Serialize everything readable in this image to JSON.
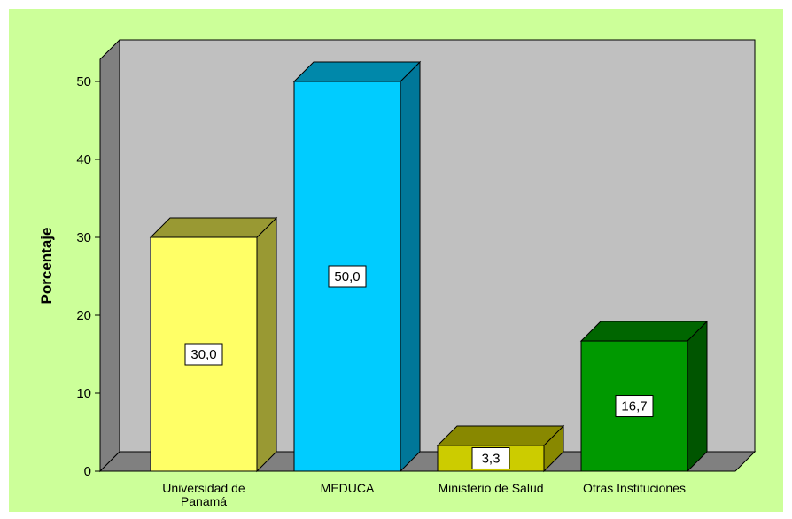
{
  "chart_data": {
    "type": "bar",
    "categories": [
      "Universidad de Panamá",
      "MEDUCA",
      "Ministerio de Salud",
      "Otras Instituciones"
    ],
    "category_lines": [
      [
        "Universidad de",
        "Panamá"
      ],
      [
        "MEDUCA"
      ],
      [
        "Ministerio de Salud"
      ],
      [
        "Otras Instituciones"
      ]
    ],
    "values": [
      30.0,
      50.0,
      3.3,
      16.7
    ],
    "data_labels": [
      "30,0",
      "50,0",
      "3,3",
      "16,7"
    ],
    "xlabel": "",
    "ylabel": "Porcentaje",
    "ylim": [
      0,
      50
    ],
    "yticks": [
      0,
      10,
      20,
      30,
      40,
      50
    ],
    "grid": false,
    "legend": "none",
    "colors": {
      "bars": [
        "#ffff66",
        "#00ccff",
        "#cccc00",
        "#009900"
      ],
      "bar_tops": [
        "#999933",
        "#0088aa",
        "#888800",
        "#006600"
      ],
      "bar_sides": [
        "#999933",
        "#007799",
        "#888800",
        "#005500"
      ],
      "background": "#ccff99",
      "plot_back": "#c0c0c0",
      "plot_wall": "#808080",
      "plot_floor": "#808080"
    }
  }
}
